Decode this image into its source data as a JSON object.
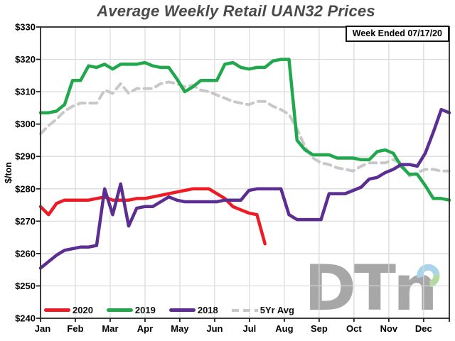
{
  "title": "Average Weekly Retail UAN32 Prices",
  "badge": "Week Ended 07/17/20",
  "logo": {
    "text": "DTn",
    "ring_blue": "#a9d4ec",
    "ring_green": "#b5d9a3",
    "gray": "#a7a7a7"
  },
  "chart_data": {
    "type": "line",
    "title": "Average Weekly Retail UAN32 Prices",
    "xlabel": "",
    "ylabel": "$/ton",
    "ylim": [
      240,
      330
    ],
    "grid": true,
    "legend_position": "bottom-inside",
    "x_unit": "week (52 weekly points Jan-Dec)",
    "categories": [
      "Jan",
      "Feb",
      "Mar",
      "Apr",
      "May",
      "Jun",
      "Jul",
      "Aug",
      "Sep",
      "Oct",
      "Nov",
      "Dec"
    ],
    "y_tick_values": [
      240,
      250,
      260,
      270,
      280,
      290,
      300,
      310,
      320,
      330
    ],
    "y_tick_labels": [
      "$240",
      "$250",
      "$260",
      "$270",
      "$280",
      "$290",
      "$300",
      "$310",
      "$320",
      "$330"
    ],
    "series": [
      {
        "name": "2020",
        "color": "#ed1c24",
        "dash": null,
        "values": [
          274.5,
          272,
          275.5,
          276.5,
          276.5,
          276.5,
          276.5,
          277,
          277.5,
          276.5,
          276.5,
          276.5,
          277,
          277,
          277.5,
          278,
          278.5,
          279,
          279.5,
          280,
          280,
          280,
          278.5,
          277,
          274.5,
          273.5,
          272.5,
          272,
          263
        ]
      },
      {
        "name": "2019",
        "color": "#21a84d",
        "dash": null,
        "values": [
          303.5,
          303.5,
          304,
          306,
          313.5,
          313.5,
          318,
          317.5,
          318.5,
          317,
          318.5,
          318.5,
          318.5,
          319,
          318,
          317.5,
          317.5,
          314,
          310,
          311.5,
          313.5,
          313.5,
          313.5,
          318.5,
          319,
          317.5,
          317,
          317.5,
          317.5,
          319.5,
          320,
          320,
          295,
          292,
          290.5,
          290.5,
          290.5,
          289.5,
          289.5,
          289.5,
          289,
          289,
          291.5,
          292,
          291,
          287,
          284.5,
          284.5,
          281,
          277,
          277,
          276.5
        ]
      },
      {
        "name": "2018",
        "color": "#5c2e91",
        "dash": null,
        "values": [
          255.5,
          257.5,
          259.5,
          261,
          261.5,
          262,
          262,
          262.5,
          280,
          272,
          281.5,
          268.5,
          274,
          274.5,
          274.5,
          276,
          277.5,
          276.5,
          276,
          276,
          276,
          276,
          276,
          276.5,
          276.5,
          276.5,
          279.5,
          280,
          280,
          280,
          280,
          272,
          270.5,
          270.5,
          270.5,
          270.5,
          278.5,
          278.5,
          278.5,
          279.5,
          280.5,
          283,
          283.5,
          285,
          286,
          287.5,
          287.5,
          287,
          291,
          297.5,
          304.5,
          303.5
        ]
      },
      {
        "name": "5Yr Avg",
        "color": "#c8c8c8",
        "dash": "10 7",
        "values": [
          297,
          299.5,
          301.5,
          304,
          305.5,
          306.5,
          306.5,
          306.5,
          310.5,
          309.5,
          312.5,
          309.5,
          311,
          311,
          311,
          312.5,
          313,
          312.5,
          311.5,
          312,
          310.5,
          310,
          309,
          308,
          307,
          306.5,
          306,
          307,
          307,
          305.5,
          304.5,
          303,
          298.5,
          293,
          289.5,
          288,
          287.5,
          286.5,
          286,
          285.5,
          287,
          288,
          288,
          288,
          289,
          288,
          284,
          285,
          286,
          286,
          285.5,
          285.5
        ]
      }
    ]
  }
}
